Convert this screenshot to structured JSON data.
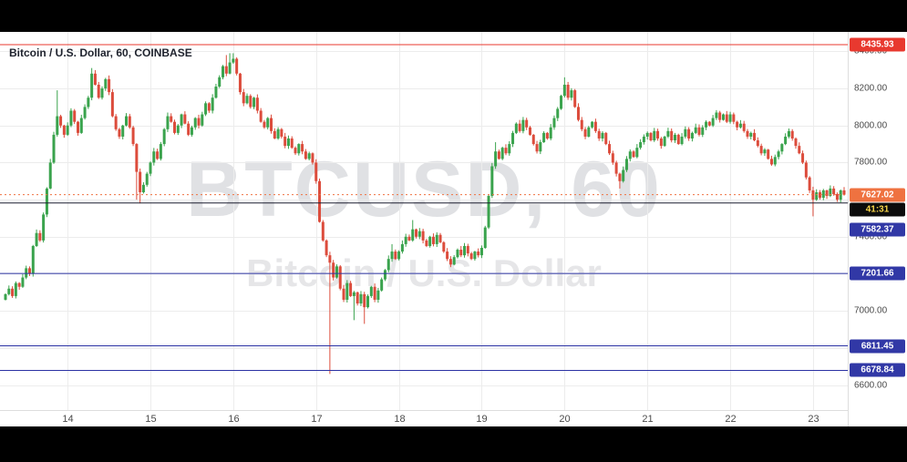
{
  "chart": {
    "symbol_title": "Bitcoin / U.S. Dollar, 60, COINBASE",
    "watermark_line1": "BTCUSD, 60",
    "watermark_line2": "Bitcoin / U.S. Dollar",
    "colors": {
      "background": "#ffffff",
      "grid": "#ececec",
      "axis_text": "#4a4a4a",
      "up": "#3aa34d",
      "down": "#dc4c3c",
      "title_text": "#1e222d",
      "watermark": "#c8cace"
    }
  },
  "chart_data": {
    "type": "candlestick",
    "symbol": "BTCUSD",
    "exchange": "COINBASE",
    "interval": "60",
    "x_axis": {
      "labels": [
        "14",
        "15",
        "16",
        "17",
        "18",
        "19",
        "20",
        "21",
        "22",
        "23"
      ],
      "candles_per_day": 24,
      "first_day_start_index": 18
    },
    "y_axis": {
      "tick_labels": [
        "8400.00",
        "8200.00",
        "8000.00",
        "7800.00",
        "7600.00",
        "7400.00",
        "7200.00",
        "7000.00",
        "6800.00",
        "6600.00"
      ],
      "top_price": 8505,
      "bottom_price": 6465
    },
    "first_open": 7060,
    "closes": [
      7090,
      7120,
      7080,
      7150,
      7130,
      7180,
      7230,
      7200,
      7350,
      7420,
      7380,
      7520,
      7660,
      7800,
      7950,
      8050,
      8000,
      7950,
      8000,
      8080,
      8020,
      7960,
      8040,
      8100,
      8150,
      8280,
      8220,
      8150,
      8200,
      8250,
      8180,
      8050,
      7980,
      7940,
      8000,
      8050,
      7990,
      7900,
      7750,
      7640,
      7680,
      7740,
      7800,
      7860,
      7820,
      7900,
      7980,
      8050,
      8020,
      7960,
      8000,
      8060,
      8010,
      7950,
      7990,
      8040,
      8000,
      8060,
      8120,
      8080,
      8150,
      8210,
      8260,
      8320,
      8280,
      8340,
      8360,
      8280,
      8180,
      8120,
      8160,
      8100,
      8150,
      8080,
      8020,
      7990,
      8040,
      7970,
      7930,
      7980,
      7940,
      7890,
      7930,
      7880,
      7850,
      7900,
      7860,
      7820,
      7850,
      7800,
      7700,
      7480,
      7380,
      7300,
      7260,
      7180,
      7240,
      7120,
      7060,
      7150,
      7080,
      7100,
      7040,
      7090,
      7020,
      7080,
      7130,
      7060,
      7110,
      7170,
      7220,
      7280,
      7320,
      7280,
      7320,
      7360,
      7400,
      7380,
      7440,
      7400,
      7430,
      7380,
      7350,
      7400,
      7360,
      7410,
      7370,
      7320,
      7280,
      7250,
      7290,
      7330,
      7300,
      7350,
      7310,
      7280,
      7320,
      7300,
      7340,
      7450,
      7620,
      7780,
      7860,
      7820,
      7880,
      7850,
      7900,
      7960,
      8010,
      7970,
      8030,
      7990,
      7950,
      7900,
      7860,
      7910,
      7960,
      7930,
      7990,
      8040,
      8090,
      8160,
      8220,
      8150,
      8190,
      8100,
      8030,
      7980,
      7940,
      7990,
      8020,
      7970,
      7930,
      7960,
      7900,
      7850,
      7800,
      7740,
      7700,
      7760,
      7820,
      7860,
      7830,
      7880,
      7910,
      7940,
      7960,
      7920,
      7970,
      7930,
      7890,
      7940,
      7970,
      7920,
      7950,
      7900,
      7940,
      7980,
      7930,
      7960,
      7990,
      7950,
      7990,
      8020,
      8000,
      8040,
      8070,
      8030,
      8060,
      8020,
      8060,
      8020,
      7990,
      8010,
      7970,
      7940,
      7960,
      7920,
      7890,
      7850,
      7870,
      7820,
      7790,
      7830,
      7860,
      7900,
      7940,
      7970,
      7930,
      7890,
      7850,
      7800,
      7720,
      7650,
      7600,
      7640,
      7610,
      7650,
      7620,
      7660,
      7630,
      7600,
      7650,
      7627.02
    ],
    "wick_overrides": [
      {
        "i": 15,
        "high": 8190
      },
      {
        "i": 25,
        "high": 8310
      },
      {
        "i": 38,
        "low": 7600
      },
      {
        "i": 39,
        "low": 7580
      },
      {
        "i": 64,
        "high": 8380
      },
      {
        "i": 65,
        "high": 8390
      },
      {
        "i": 66,
        "high": 8390
      },
      {
        "i": 94,
        "low": 6660
      },
      {
        "i": 101,
        "low": 6950
      },
      {
        "i": 104,
        "low": 6930
      },
      {
        "i": 112,
        "high": 7360
      },
      {
        "i": 118,
        "high": 7490
      },
      {
        "i": 142,
        "high": 7910
      },
      {
        "i": 162,
        "high": 8260
      },
      {
        "i": 178,
        "low": 7660
      },
      {
        "i": 234,
        "low": 7510
      }
    ],
    "levels": [
      {
        "price": 8435.93,
        "label": "8435.93",
        "color": "#e8392f",
        "badge_color": "#e8392f",
        "style": "solid"
      },
      {
        "price": 7582.37,
        "label": "7582.37",
        "color": "#1c1e30",
        "badge_color": "#3138a6",
        "style": "solid"
      },
      {
        "price": 7201.66,
        "label": "7201.66",
        "color": "#2b32a3",
        "badge_color": "#3138a6",
        "style": "solid"
      },
      {
        "price": 6811.45,
        "label": "6811.45",
        "color": "#2b32a3",
        "badge_color": "#3138a6",
        "style": "solid"
      },
      {
        "price": 6678.84,
        "label": "6678.84",
        "color": "#2b32a3",
        "badge_color": "#3138a6",
        "style": "solid"
      }
    ],
    "last_price": {
      "value": 7627.02,
      "label": "7627.02",
      "color": "#ef7240",
      "countdown": "41:31",
      "countdown_bg": "#0c0c0c",
      "countdown_color": "#f8d548"
    }
  }
}
